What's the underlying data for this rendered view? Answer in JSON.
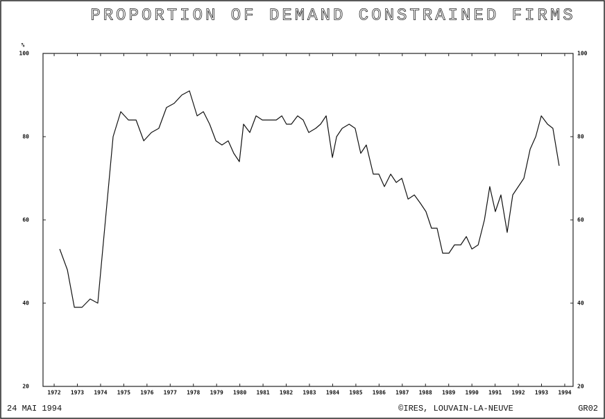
{
  "chart_data": {
    "type": "line",
    "title": "PROPORTION OF DEMAND CONSTRAINED FIRMS",
    "y_label": "%",
    "footer_left": "24 MAI 1994",
    "footer_center": "©IRES, LOUVAIN-LA-NEUVE",
    "footer_right": "GR02",
    "x": [
      1972.24,
      1972.57,
      1972.87,
      1973.2,
      1973.55,
      1973.88,
      1974.21,
      1974.54,
      1974.87,
      1975.2,
      1975.53,
      1975.86,
      1976.19,
      1976.51,
      1976.84,
      1977.17,
      1977.5,
      1977.83,
      1978.16,
      1978.43,
      1978.7,
      1978.97,
      1979.23,
      1979.5,
      1979.74,
      1979.98,
      1980.16,
      1980.43,
      1980.7,
      1980.97,
      1981.3,
      1981.57,
      1981.81,
      1982.01,
      1982.22,
      1982.49,
      1982.73,
      1982.97,
      1983.27,
      1983.48,
      1983.72,
      1983.99,
      1984.17,
      1984.41,
      1984.71,
      1984.97,
      1985.21,
      1985.45,
      1985.75,
      1985.99,
      1986.23,
      1986.5,
      1986.74,
      1986.98,
      1987.25,
      1987.52,
      1987.78,
      1988.02,
      1988.26,
      1988.5,
      1988.74,
      1989.01,
      1989.25,
      1989.52,
      1989.76,
      1990.0,
      1990.27,
      1990.54,
      1990.77,
      1991.01,
      1991.25,
      1991.52,
      1991.76,
      1992.0,
      1992.24,
      1992.51,
      1992.75,
      1992.99,
      1993.26,
      1993.49,
      1993.76
    ],
    "series": [
      {
        "name": "Demand constrained firms",
        "color": "#111111",
        "values": [
          53,
          48,
          39,
          39,
          41,
          40,
          60,
          80,
          86,
          84,
          84,
          79,
          81,
          82,
          87,
          88,
          90,
          91,
          85,
          86,
          83,
          79,
          78,
          79,
          76,
          74,
          83,
          81,
          85,
          84,
          84,
          84,
          85,
          83,
          83,
          85,
          84,
          81,
          82,
          83,
          85,
          75,
          80,
          82,
          83,
          82,
          76,
          78,
          71,
          71,
          68,
          71,
          69,
          70,
          65,
          66,
          64,
          62,
          58,
          58,
          52,
          52,
          54,
          54,
          56,
          53,
          54,
          60,
          68,
          62,
          66,
          57,
          66,
          68,
          70,
          77,
          80,
          85,
          83,
          82,
          73
        ]
      }
    ],
    "xlim": [
      1971.52,
      1994.36
    ],
    "xticks": [
      1972,
      1973,
      1974,
      1975,
      1976,
      1977,
      1978,
      1979,
      1980,
      1981,
      1982,
      1983,
      1984,
      1985,
      1986,
      1987,
      1988,
      1989,
      1990,
      1991,
      1992,
      1993,
      1994
    ],
    "ylim": [
      20,
      100
    ],
    "yticks": [
      20,
      40,
      60,
      80,
      100
    ]
  }
}
